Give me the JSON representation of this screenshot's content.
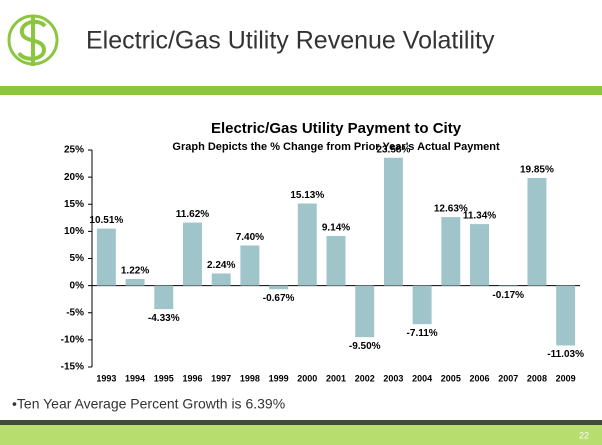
{
  "slide": {
    "title": "Electric/Gas Utility Revenue Volatility",
    "bullet": "•Ten Year Average Percent Growth is 6.39%",
    "page_number": "22"
  },
  "chart_data": {
    "type": "bar",
    "title": "Electric/Gas Utility Payment to City",
    "subtitle": "Graph Depicts the % Change from Prior Year's Actual Payment",
    "categories": [
      "1993",
      "1994",
      "1995",
      "1996",
      "1997",
      "1998",
      "1999",
      "2000",
      "2001",
      "2002",
      "2003",
      "2004",
      "2005",
      "2006",
      "2007",
      "2008",
      "2009"
    ],
    "values": [
      10.51,
      1.22,
      -4.33,
      11.62,
      2.24,
      7.4,
      -0.67,
      15.13,
      9.14,
      -9.5,
      23.58,
      -7.11,
      12.63,
      11.34,
      -0.17,
      19.85,
      -11.03
    ],
    "value_labels": [
      "10.51%",
      "1.22%",
      "-4.33%",
      "11.62%",
      "2.24%",
      "7.40%",
      "-0.67%",
      "15.13%",
      "9.14%",
      "-9.50%",
      "23.58%",
      "-7.11%",
      "12.63%",
      "11.34%",
      "-0.17%",
      "19.85%",
      "-11.03%"
    ],
    "color": "#9fc4ca",
    "ylim": [
      -15,
      25
    ],
    "yticks": [
      {
        "value": -15,
        "label": "-15%"
      },
      {
        "value": -10,
        "label": "-10%"
      },
      {
        "value": -5,
        "label": "-5%"
      },
      {
        "value": 0,
        "label": "0%"
      },
      {
        "value": 5,
        "label": "5%"
      },
      {
        "value": 10,
        "label": "10%"
      },
      {
        "value": 15,
        "label": "15%"
      },
      {
        "value": 20,
        "label": "20%"
      },
      {
        "value": 25,
        "label": "25%"
      }
    ],
    "grid": false
  }
}
